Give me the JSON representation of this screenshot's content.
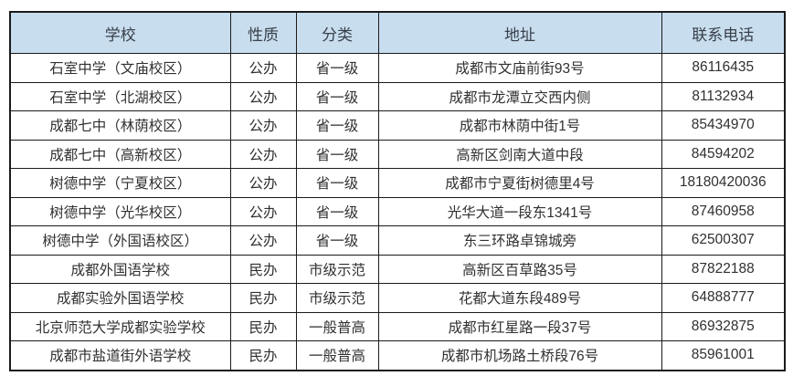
{
  "table": {
    "columns": [
      {
        "key": "school",
        "label": "学校"
      },
      {
        "key": "nature",
        "label": "性质"
      },
      {
        "key": "category",
        "label": "分类"
      },
      {
        "key": "address",
        "label": "地址"
      },
      {
        "key": "phone",
        "label": "联系电话"
      }
    ],
    "rows": [
      {
        "school": "石室中学（文庙校区）",
        "nature": "公办",
        "category": "省一级",
        "address": "成都市文庙前街93号",
        "phone": "86116435"
      },
      {
        "school": "石室中学（北湖校区）",
        "nature": "公办",
        "category": "省一级",
        "address": "成都市龙潭立交西内侧",
        "phone": "81132934"
      },
      {
        "school": "成都七中（林荫校区）",
        "nature": "公办",
        "category": "省一级",
        "address": "成都市林荫中街1号",
        "phone": "85434970"
      },
      {
        "school": "成都七中（高新校区）",
        "nature": "公办",
        "category": "省一级",
        "address": "高新区剑南大道中段",
        "phone": "84594202"
      },
      {
        "school": "树德中学（宁夏校区）",
        "nature": "公办",
        "category": "省一级",
        "address": "成都市宁夏街树德里4号",
        "phone": "18180420036"
      },
      {
        "school": "树德中学（光华校区）",
        "nature": "公办",
        "category": "省一级",
        "address": "光华大道一段东1341号",
        "phone": "87460958"
      },
      {
        "school": "树德中学（外国语校区）",
        "nature": "公办",
        "category": "省一级",
        "address": "东三环路卓锦城旁",
        "phone": "62500307"
      },
      {
        "school": "成都外国语学校",
        "nature": "民办",
        "category": "市级示范",
        "address": "高新区百草路35号",
        "phone": "87822188"
      },
      {
        "school": "成都实验外国语学校",
        "nature": "民办",
        "category": "市级示范",
        "address": "花都大道东段489号",
        "phone": "64888777"
      },
      {
        "school": "北京师范大学成都实验学校",
        "nature": "民办",
        "category": "一般普高",
        "address": "成都市红星路一段37号",
        "phone": "86932875"
      },
      {
        "school": "成都市盐道街外语学校",
        "nature": "民办",
        "category": "一般普高",
        "address": "成都市机场路土桥段76号",
        "phone": "85961001"
      }
    ],
    "colors": {
      "header_bg": "#c8ddee",
      "border": "#1b1b1b",
      "text": "#303030"
    }
  }
}
